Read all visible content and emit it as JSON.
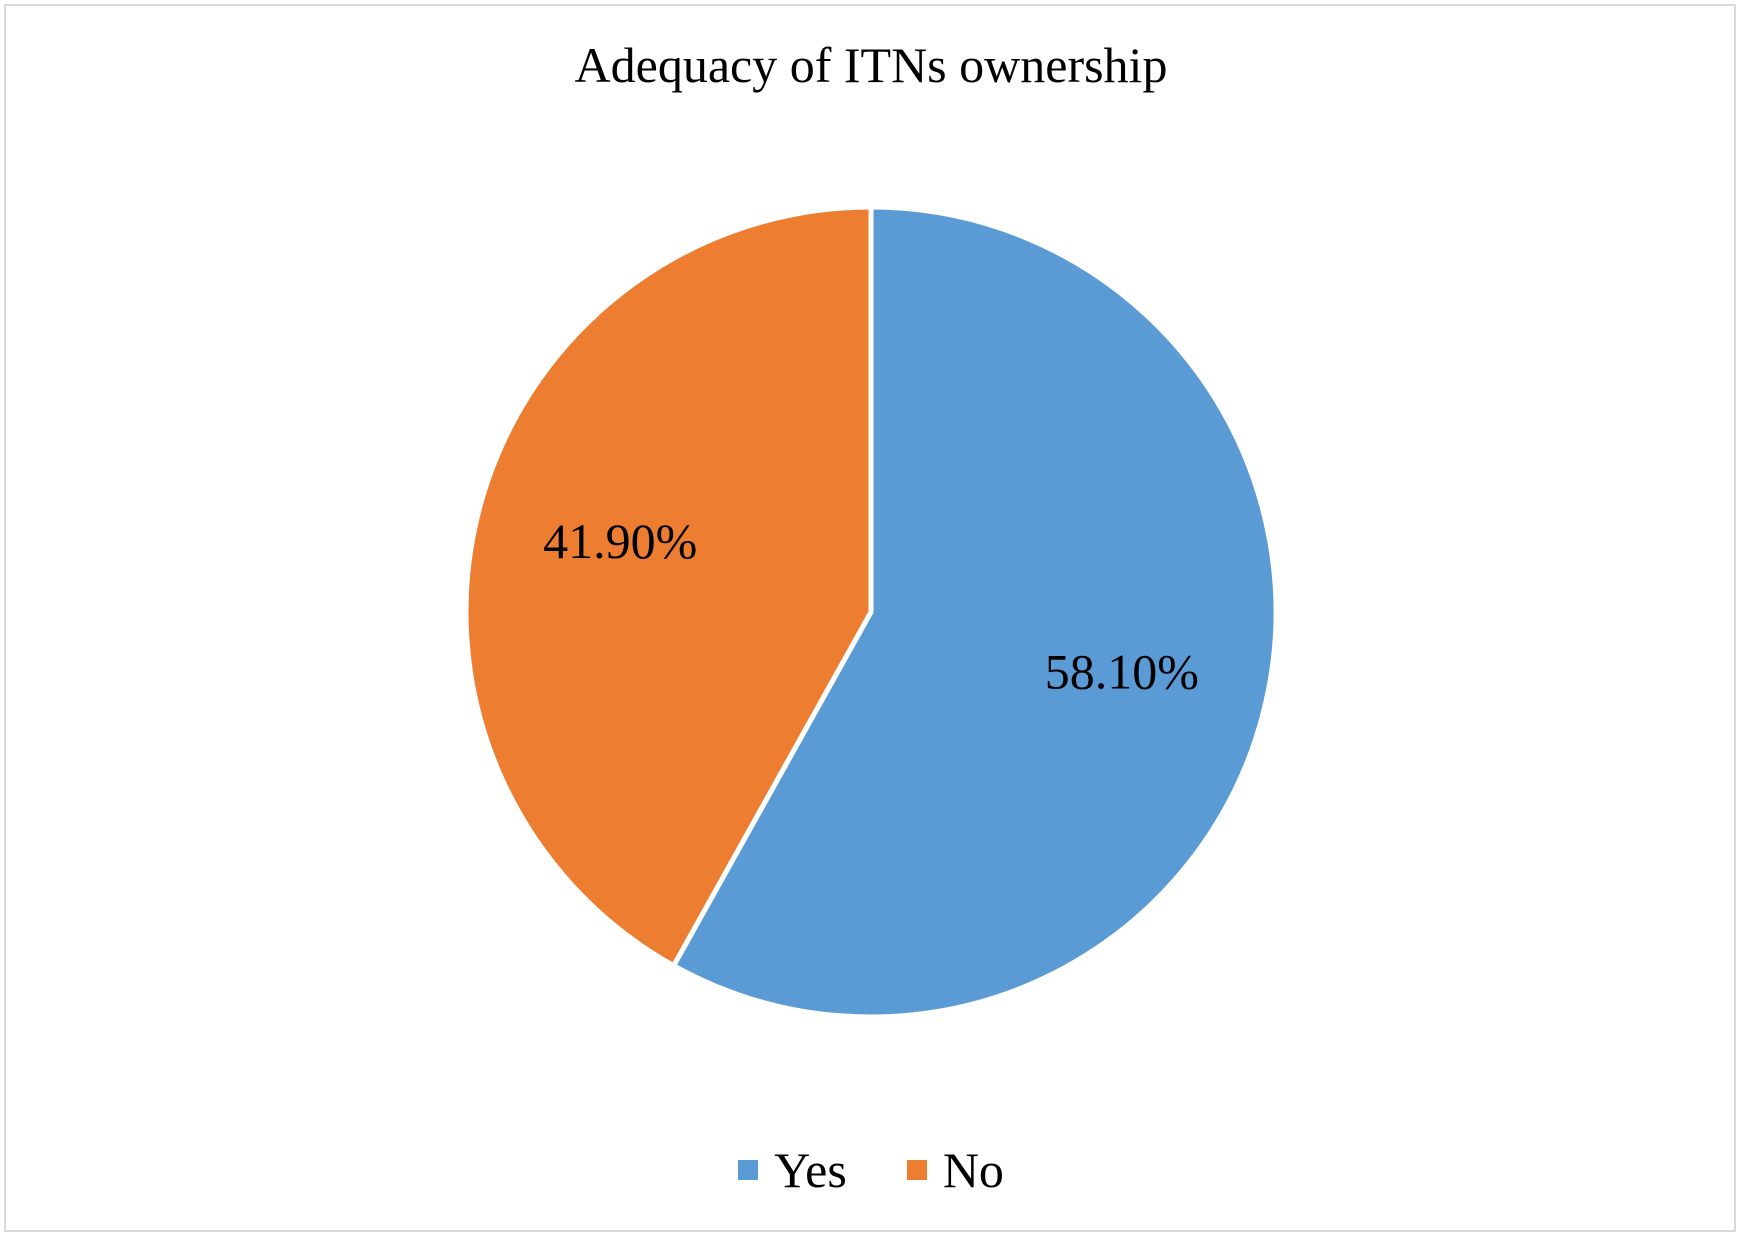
{
  "chart_data": {
    "type": "pie",
    "title": "Adequacy of ITNs ownership",
    "slices": [
      {
        "name": "Yes",
        "value": 58.1,
        "label": "58.10%",
        "color": "#5b9bd5"
      },
      {
        "name": "No",
        "value": 41.9,
        "label": "41.90%",
        "color": "#ed7d31"
      }
    ],
    "legend_position": "bottom"
  }
}
